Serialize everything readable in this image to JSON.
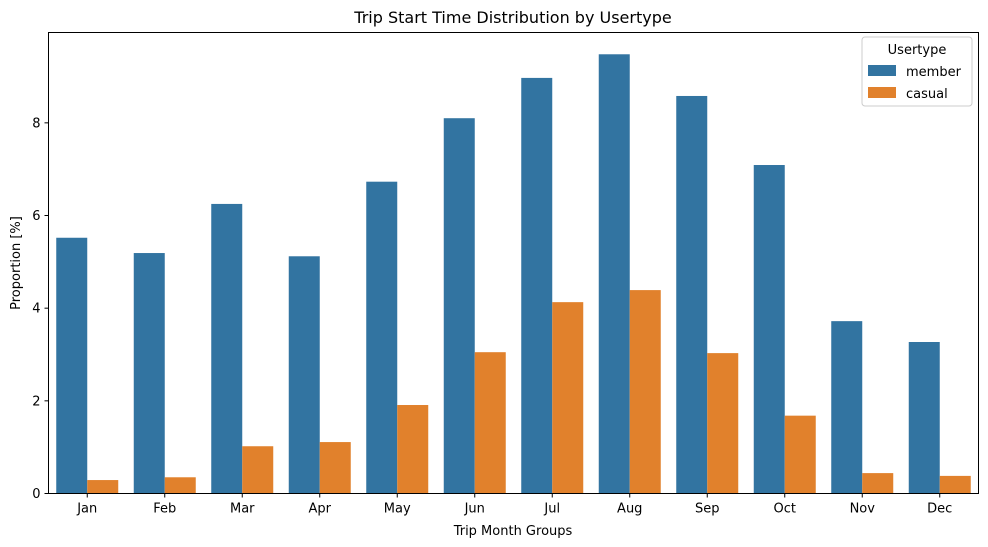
{
  "chart_data": {
    "type": "bar",
    "title": "Trip Start Time Distribution by Usertype",
    "xlabel": "Trip Month Groups",
    "ylabel": "Proportion [%]",
    "categories": [
      "Jan",
      "Feb",
      "Mar",
      "Apr",
      "May",
      "Jun",
      "Jul",
      "Aug",
      "Sep",
      "Oct",
      "Nov",
      "Dec"
    ],
    "series": [
      {
        "name": "member",
        "color": "#3274a1",
        "values": [
          5.52,
          5.19,
          6.25,
          5.12,
          6.73,
          8.1,
          8.97,
          9.48,
          8.58,
          7.09,
          3.72,
          3.27
        ]
      },
      {
        "name": "casual",
        "color": "#e1812c",
        "values": [
          0.29,
          0.35,
          1.02,
          1.11,
          1.91,
          3.05,
          4.13,
          4.39,
          3.03,
          1.68,
          0.44,
          0.38
        ]
      }
    ],
    "ylim": [
      0,
      9.95
    ],
    "yticks": [
      0,
      2,
      4,
      6,
      8
    ],
    "grid": false,
    "legend": {
      "title": "Usertype",
      "position": "top-right"
    }
  }
}
